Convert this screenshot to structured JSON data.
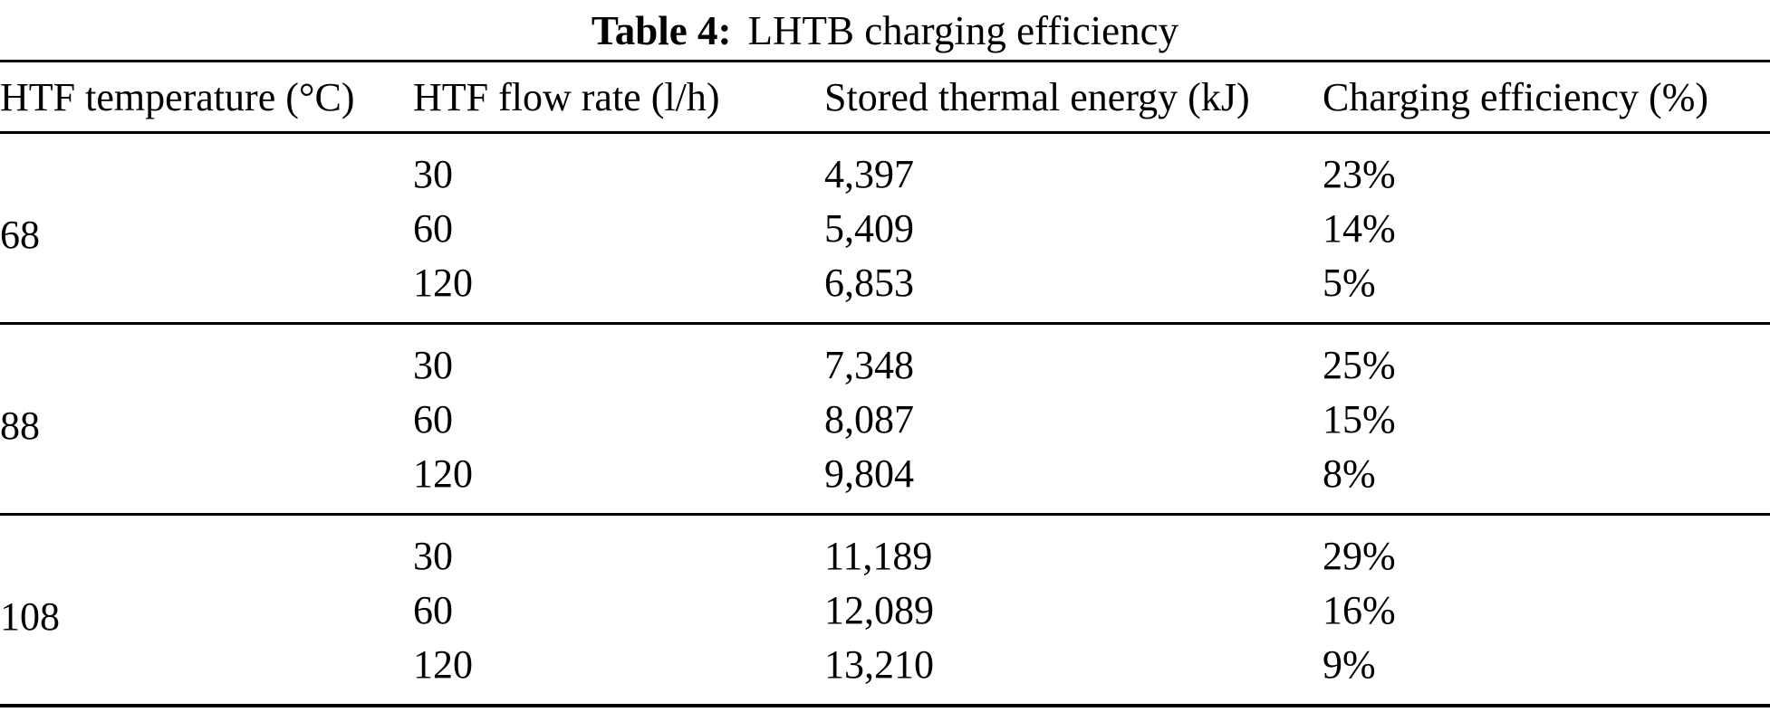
{
  "table": {
    "caption": {
      "label": "Table 4:",
      "title": "LHTB charging efficiency"
    },
    "columns": [
      "HTF temperature (°C)",
      "HTF flow rate (l/h)",
      "Stored thermal energy (kJ)",
      "Charging efficiency (%)"
    ],
    "groups": [
      {
        "temperature": "68",
        "rows": [
          {
            "flow_rate": "30",
            "stored_energy": "4,397",
            "efficiency": "23%"
          },
          {
            "flow_rate": "60",
            "stored_energy": "5,409",
            "efficiency": "14%"
          },
          {
            "flow_rate": "120",
            "stored_energy": "6,853",
            "efficiency": "5%"
          }
        ]
      },
      {
        "temperature": "88",
        "rows": [
          {
            "flow_rate": "30",
            "stored_energy": "7,348",
            "efficiency": "25%"
          },
          {
            "flow_rate": "60",
            "stored_energy": "8,087",
            "efficiency": "15%"
          },
          {
            "flow_rate": "120",
            "stored_energy": "9,804",
            "efficiency": "8%"
          }
        ]
      },
      {
        "temperature": "108",
        "rows": [
          {
            "flow_rate": "30",
            "stored_energy": "11,189",
            "efficiency": "29%"
          },
          {
            "flow_rate": "60",
            "stored_energy": "12,089",
            "efficiency": "16%"
          },
          {
            "flow_rate": "120",
            "stored_energy": "13,210",
            "efficiency": "9%"
          }
        ]
      }
    ]
  },
  "chart_data": {
    "type": "table",
    "title": "Table 4: LHTB charging efficiency",
    "columns": [
      "HTF temperature (°C)",
      "HTF flow rate (l/h)",
      "Stored thermal energy (kJ)",
      "Charging efficiency (%)"
    ],
    "rows": [
      [
        68,
        30,
        4397,
        23
      ],
      [
        68,
        60,
        5409,
        14
      ],
      [
        68,
        120,
        6853,
        5
      ],
      [
        88,
        30,
        7348,
        25
      ],
      [
        88,
        60,
        8087,
        15
      ],
      [
        88,
        120,
        9804,
        8
      ],
      [
        108,
        30,
        11189,
        29
      ],
      [
        108,
        60,
        12089,
        16
      ],
      [
        108,
        120,
        13210,
        9
      ]
    ],
    "units": {
      "temperature": "°C",
      "flow_rate": "l/h",
      "stored_energy": "kJ",
      "efficiency": "%"
    }
  }
}
